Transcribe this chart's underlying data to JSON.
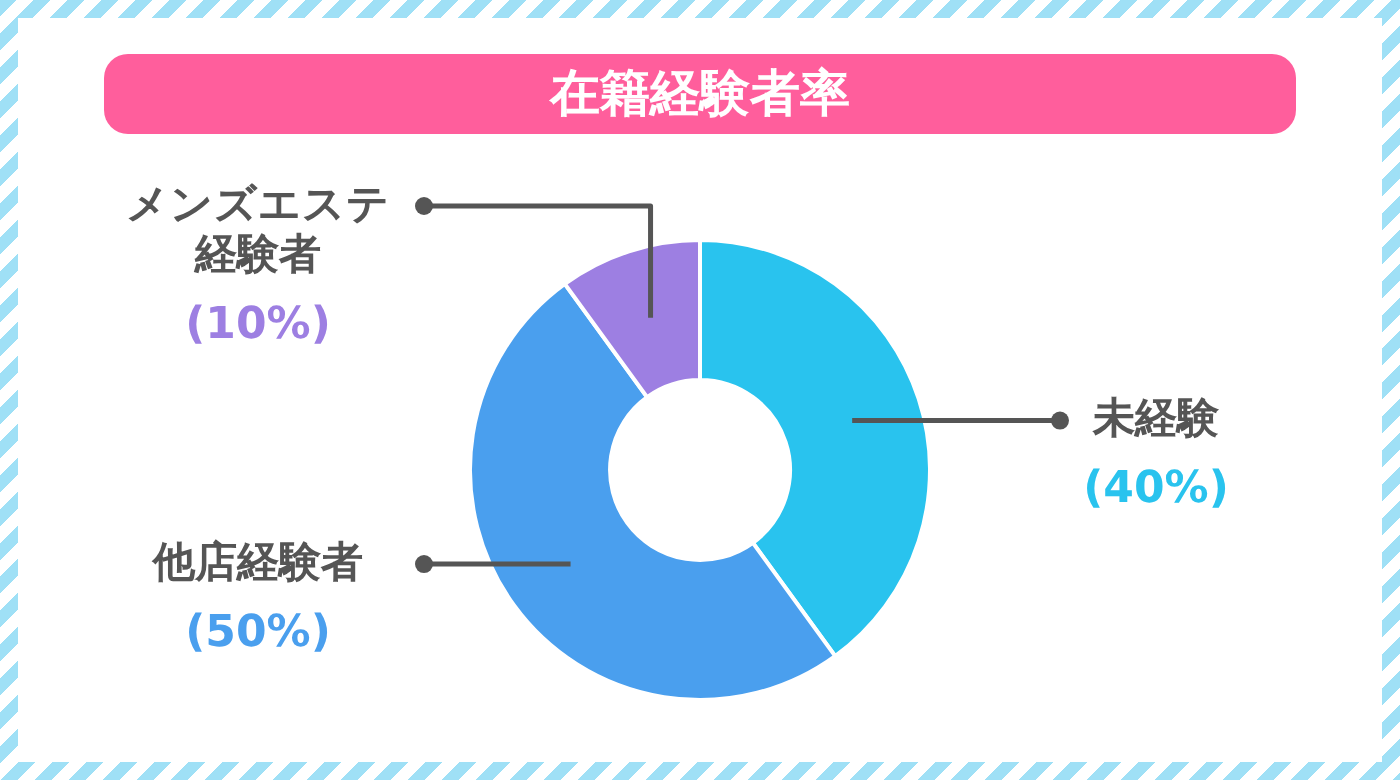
{
  "chart_data": {
    "type": "donut",
    "title": "在籍経験者率",
    "categories": [
      "未経験",
      "他店経験者",
      "メンズエステ経験者"
    ],
    "values": [
      40,
      50,
      10
    ],
    "colors": [
      "#29c3ee",
      "#4a9fee",
      "#9d7fe2"
    ],
    "value_labels": [
      "(40%)",
      "(50%)",
      "(10%)"
    ]
  }
}
